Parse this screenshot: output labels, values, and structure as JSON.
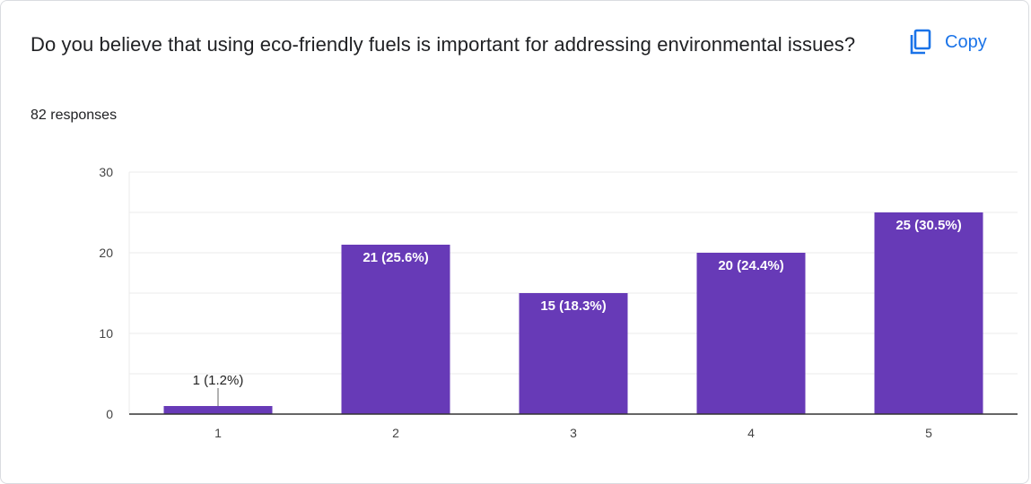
{
  "question": {
    "title": "Do you believe that using eco-friendly fuels is important for addressing environmental issues?",
    "responses": "82 responses"
  },
  "toolbar": {
    "copy_label": "Copy",
    "copy_icon": "copy-icon"
  },
  "colors": {
    "bar": "#673ab7",
    "text": "#202124",
    "accent": "#1a73e8",
    "grid": "#ebebeb",
    "axis": "#333333"
  },
  "chart_data": {
    "type": "bar",
    "categories": [
      "1",
      "2",
      "3",
      "4",
      "5"
    ],
    "values": [
      1,
      21,
      15,
      20,
      25
    ],
    "data_labels": [
      "1 (1.2%)",
      "21 (25.6%)",
      "15 (18.3%)",
      "20 (24.4%)",
      "25 (30.5%)"
    ],
    "yticks": [
      0,
      10,
      20,
      30
    ],
    "ylim": [
      0,
      30
    ],
    "grid": true,
    "xlabel": "",
    "ylabel": ""
  }
}
